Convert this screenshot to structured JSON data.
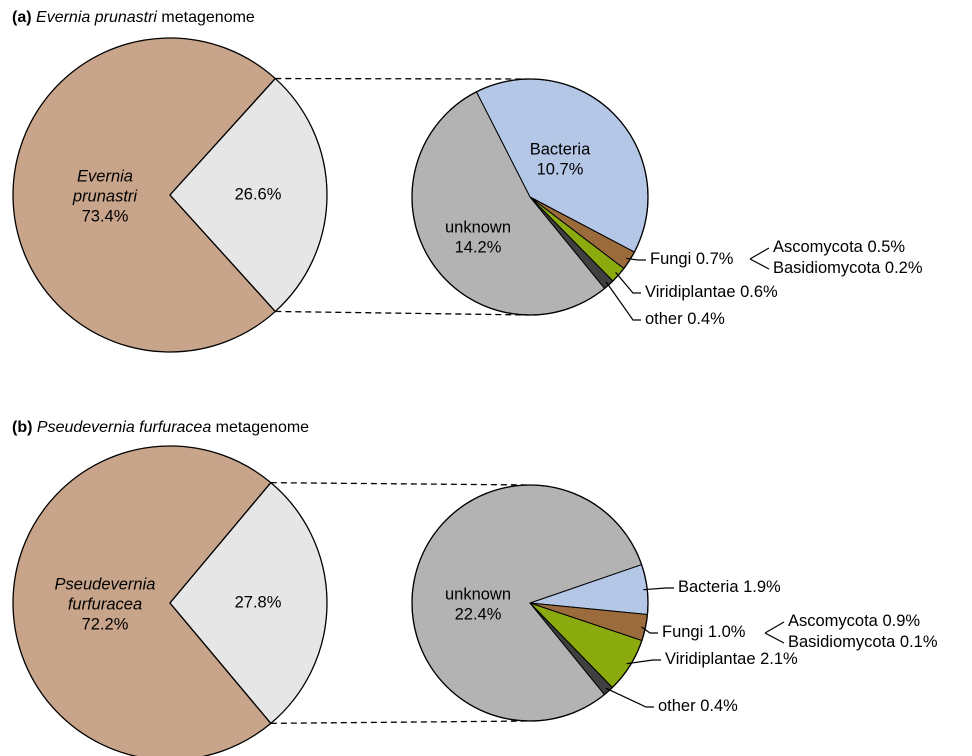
{
  "chart_data": [
    {
      "type": "pie",
      "title": {
        "panel": "(a)",
        "name": "Evernia prunastri",
        "suffix": "metagenome"
      },
      "categories": [
        [
          "Evernia",
          "prunastri"
        ],
        null
      ],
      "values": [
        73.4,
        26.6
      ],
      "value_labels": [
        "73.4%",
        "26.6%"
      ],
      "colors": [
        "#c8a58a",
        "#e6e6e6"
      ],
      "breakdown": {
        "categories": [
          "Bacteria",
          "Fungi",
          "Viridiplantae",
          "other",
          "unknown"
        ],
        "values": [
          10.7,
          0.7,
          0.6,
          0.4,
          14.2
        ],
        "value_labels": [
          "10.7%",
          "0.7%",
          "0.6%",
          "0.4%",
          "14.2%"
        ],
        "colors": [
          "#b4c7e7",
          "#9c6b3c",
          "#8aaa0e",
          "#404040",
          "#b3b3b3"
        ],
        "sub": {
          "categories": [
            "Ascomycota",
            "Basidiomycota"
          ],
          "values": [
            0.5,
            0.2
          ],
          "value_labels": [
            "0.5%",
            "0.2%"
          ]
        }
      }
    },
    {
      "type": "pie",
      "title": {
        "panel": "(b)",
        "name": "Pseudevernia furfuracea",
        "suffix": "metagenome"
      },
      "categories": [
        [
          "Pseudevernia",
          "furfuracea"
        ],
        null
      ],
      "values": [
        72.2,
        27.8
      ],
      "value_labels": [
        "72.2%",
        "27.8%"
      ],
      "colors": [
        "#c8a58a",
        "#e6e6e6"
      ],
      "breakdown": {
        "categories": [
          "Bacteria",
          "Fungi",
          "Viridiplantae",
          "other",
          "unknown"
        ],
        "values": [
          1.9,
          1.0,
          2.1,
          0.4,
          22.4
        ],
        "value_labels": [
          "1.9%",
          "1.0%",
          "2.1%",
          "0.4%",
          "22.4%"
        ],
        "colors": [
          "#b4c7e7",
          "#9c6b3c",
          "#8aaa0e",
          "#404040",
          "#b3b3b3"
        ],
        "sub": {
          "categories": [
            "Ascomycota",
            "Basidiomycota"
          ],
          "values": [
            0.9,
            0.1
          ],
          "value_labels": [
            "0.9%",
            "0.1%"
          ]
        }
      }
    }
  ]
}
